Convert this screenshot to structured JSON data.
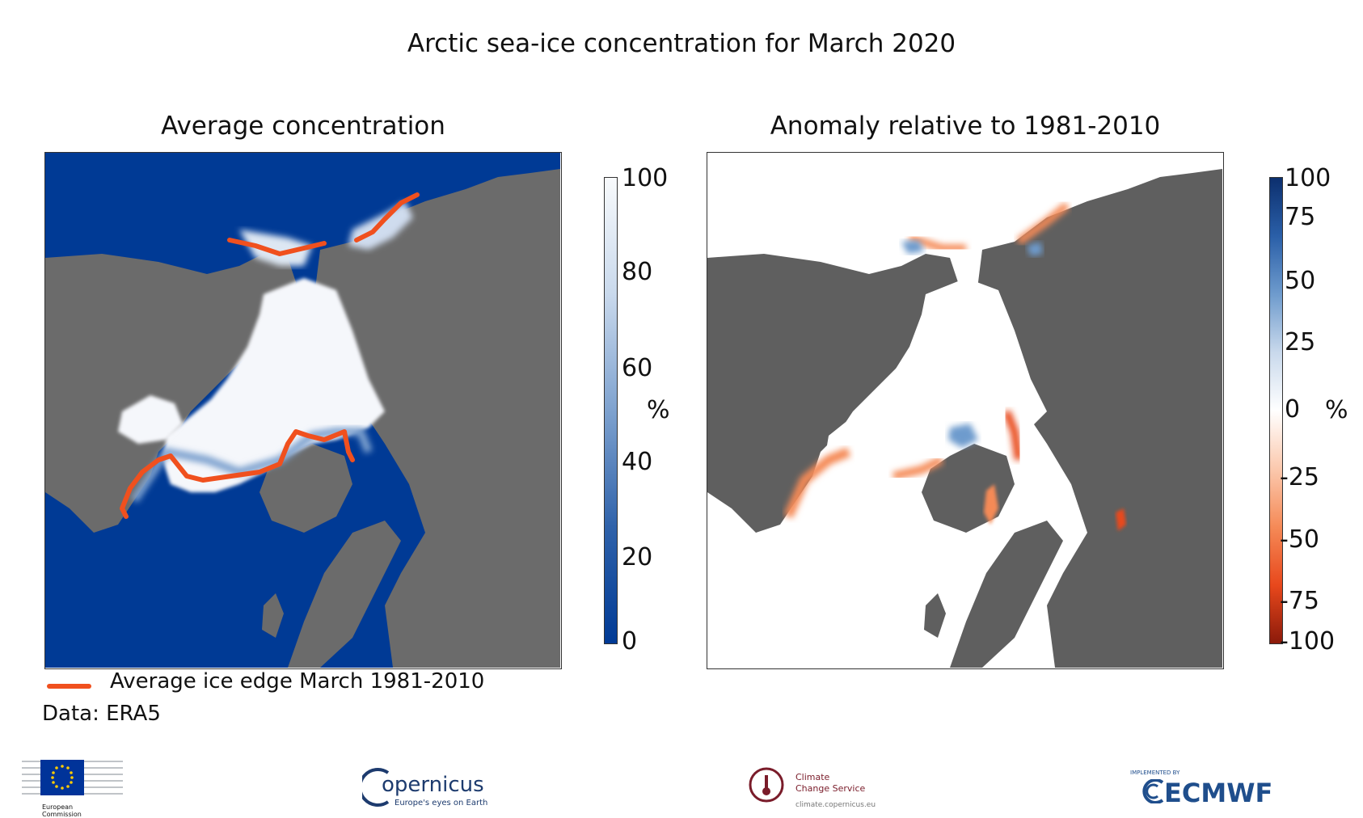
{
  "title": "Arctic sea-ice concentration for March 2020",
  "panels": [
    {
      "title": "Average concentration",
      "colorbar": {
        "ticks": [
          "100",
          "80",
          "60",
          "40",
          "20",
          "0"
        ],
        "unit": "%",
        "colors": [
          "#f8fafc",
          "#c9d9ec",
          "#7ea2cf",
          "#2f62aa",
          "#003a95"
        ]
      }
    },
    {
      "title": "Anomaly relative to 1981-2010",
      "colorbar": {
        "ticks": [
          "100",
          "75",
          "50",
          "25",
          "0",
          "-25",
          "-50",
          "-75",
          "-100"
        ],
        "unit": "%",
        "colors": [
          "#0c2f6e",
          "#2a5fa8",
          "#6e9bcd",
          "#c9d9ec",
          "#ffffff",
          "#fbc9ae",
          "#f58a57",
          "#e8481c",
          "#8b1a0a"
        ]
      }
    }
  ],
  "legend": {
    "label": "Average ice edge March 1981-2010",
    "line_color": "#f0501e"
  },
  "source": "Data: ERA5",
  "colors": {
    "ocean": "#003a95",
    "land": "#6b6b6b",
    "ice": "#f5f7fb",
    "ice_edge": "#f0501e"
  },
  "logos": {
    "ec": [
      "European",
      "Commission"
    ],
    "copernicus": {
      "name": "opernicus",
      "tagline": "Europe's eyes on Earth"
    },
    "c3s": {
      "line1": "Climate",
      "line2": "Change Service",
      "url": "climate.copernicus.eu"
    },
    "ecmwf": {
      "small": "IMPLEMENTED BY",
      "name": "ECMWF"
    }
  }
}
